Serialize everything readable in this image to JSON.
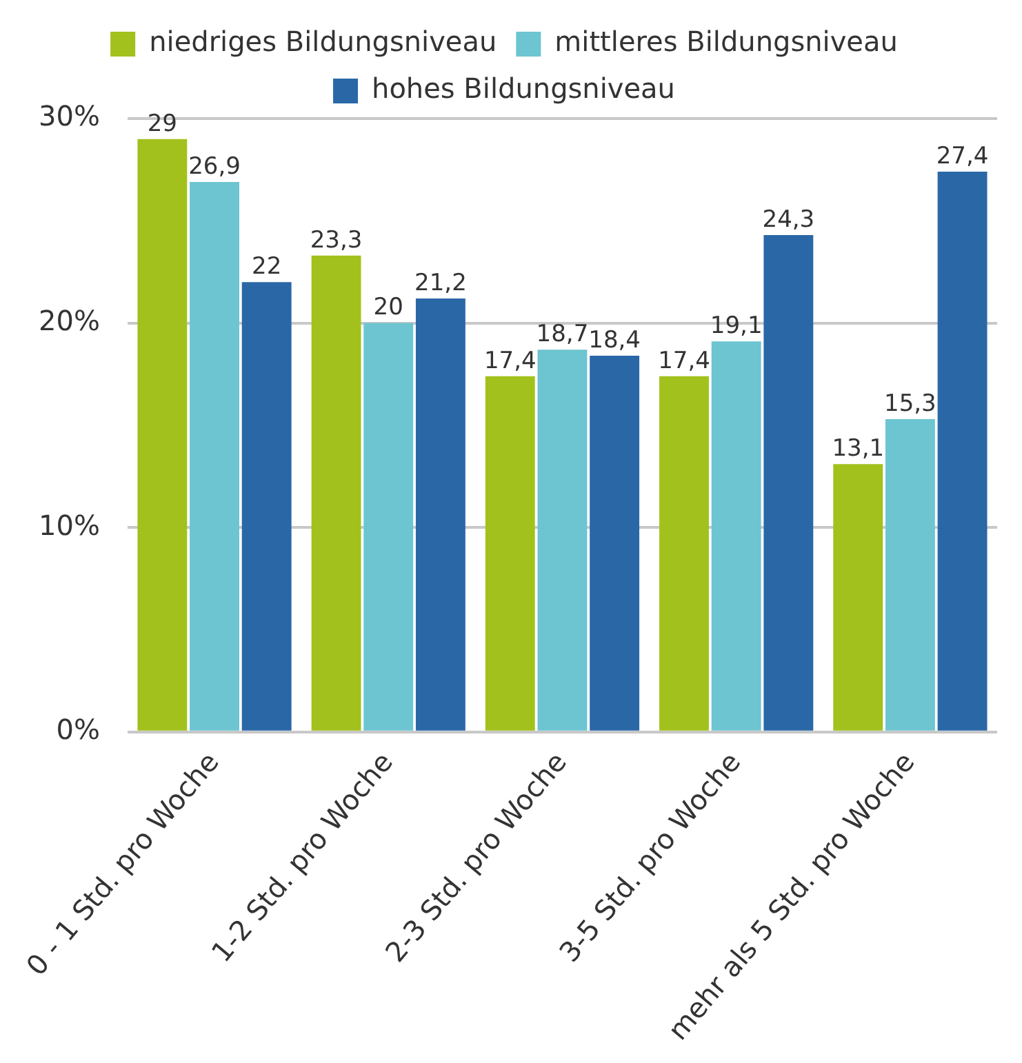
{
  "chart_data": {
    "type": "bar",
    "categories": [
      "0 - 1 Std. pro Woche",
      "1-2 Std. pro Woche",
      "2-3 Std. pro Woche",
      "3-5 Std. pro Woche",
      "mehr als 5 Std. pro Woche"
    ],
    "series": [
      {
        "name": "niedriges Bildungsniveau",
        "color": "#a2c11c",
        "values": [
          29,
          23.3,
          17.4,
          17.4,
          13.1
        ],
        "value_labels": [
          "29",
          "23,3",
          "17,4",
          "17,4",
          "13,1"
        ]
      },
      {
        "name": "mittleres Bildungsniveau",
        "color": "#6cc5d1",
        "values": [
          26.9,
          20,
          18.7,
          19.1,
          15.3
        ],
        "value_labels": [
          "26,9",
          "20",
          "18,7",
          "19,1",
          "15,3"
        ]
      },
      {
        "name": "hohes Bildungsniveau",
        "color": "#2a67a7",
        "values": [
          22,
          21.2,
          18.4,
          24.3,
          27.4
        ],
        "value_labels": [
          "22",
          "21,2",
          "18,4",
          "24,3",
          "27,4"
        ]
      }
    ],
    "ylim": [
      0,
      30
    ],
    "yticks": [
      {
        "value": 0,
        "label": "0%"
      },
      {
        "value": 10,
        "label": "10%"
      },
      {
        "value": 20,
        "label": "20%"
      },
      {
        "value": 30,
        "label": "30%"
      }
    ],
    "grid": "y",
    "legend": "top"
  }
}
